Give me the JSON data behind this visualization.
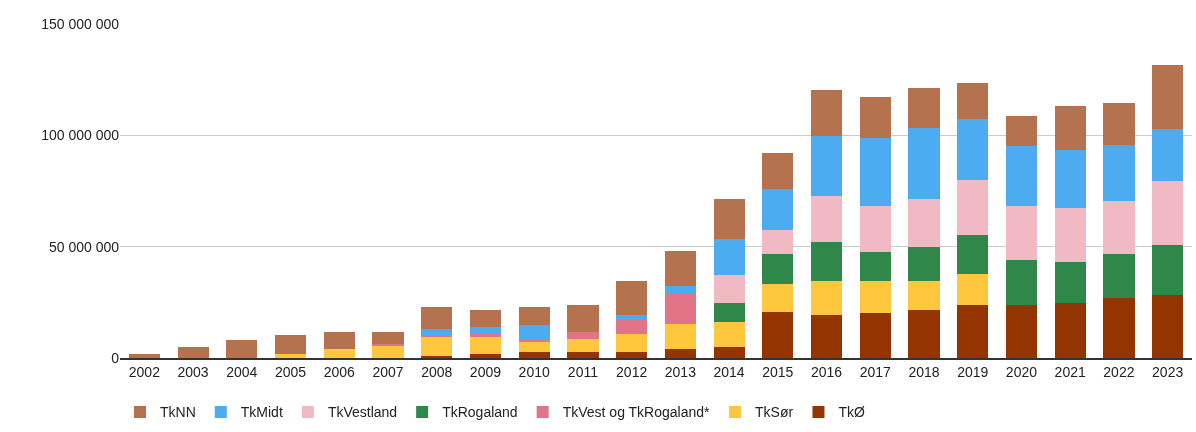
{
  "chart_data": {
    "type": "bar",
    "stacked": true,
    "categories": [
      "2002",
      "2003",
      "2004",
      "2005",
      "2006",
      "2007",
      "2008",
      "2009",
      "2010",
      "2011",
      "2012",
      "2013",
      "2014",
      "2015",
      "2016",
      "2017",
      "2018",
      "2019",
      "2020",
      "2021",
      "2022",
      "2023"
    ],
    "series": [
      {
        "name": "TkØ",
        "color": "#943501",
        "values": [
          null,
          null,
          null,
          null,
          null,
          null,
          900000,
          1900000,
          2600000,
          2600000,
          2600000,
          3900000,
          4800000,
          20800000,
          19200000,
          20100000,
          21700000,
          23900000,
          23900000,
          24700000,
          26900000,
          28400000
        ]
      },
      {
        "name": "TkSør",
        "color": "#ffc73e",
        "values": [
          null,
          null,
          null,
          1800000,
          4100000,
          5400000,
          8500000,
          7500000,
          4400000,
          6000000,
          8200000,
          11500000,
          11200000,
          12300000,
          15400000,
          14500000,
          12900000,
          13800000,
          null,
          null,
          null,
          null
        ]
      },
      {
        "name": "TkVest og TkRogaland*",
        "color": "#e17587",
        "values": [
          null,
          null,
          null,
          null,
          null,
          900000,
          900000,
          1500000,
          1600000,
          2900000,
          6900000,
          13600000,
          null,
          null,
          null,
          null,
          null,
          null,
          null,
          null,
          null,
          null
        ]
      },
      {
        "name": "TkRogaland",
        "color": "#2f8749",
        "values": [
          null,
          null,
          null,
          null,
          null,
          null,
          null,
          null,
          null,
          null,
          null,
          null,
          8500000,
          13800000,
          17600000,
          13000000,
          15400000,
          17600000,
          19900000,
          18300000,
          19900000,
          22300000
        ]
      },
      {
        "name": "TkVestland",
        "color": "#f0b9c3",
        "values": [
          null,
          null,
          null,
          null,
          null,
          null,
          null,
          null,
          null,
          null,
          null,
          null,
          12900000,
          10700000,
          20600000,
          20600000,
          21400000,
          24500000,
          24500000,
          24300000,
          23600000,
          29000000
        ]
      },
      {
        "name": "TkMidt",
        "color": "#4dabf0",
        "values": [
          null,
          null,
          null,
          null,
          null,
          null,
          2900000,
          3100000,
          6100000,
          null,
          1800000,
          3200000,
          16100000,
          18300000,
          26800000,
          30600000,
          32100000,
          27500000,
          26800000,
          26100000,
          25300000,
          23000000
        ]
      },
      {
        "name": "TkNN",
        "color": "#b4724e",
        "values": [
          1800000,
          4800000,
          7900000,
          8400000,
          7600000,
          5400000,
          9900000,
          7600000,
          8300000,
          12300000,
          15200000,
          15900000,
          17700000,
          16100000,
          20600000,
          18300000,
          17600000,
          16100000,
          13600000,
          19900000,
          19000000,
          29100000
        ]
      }
    ],
    "ylim": [
      0,
      150000000
    ],
    "yticks": [
      0,
      {
        "value": 50000000,
        "label": "50 000 000"
      },
      {
        "value": 100000000,
        "label": "100 000 000"
      },
      {
        "value": 150000000,
        "label": "150 000 000"
      }
    ],
    "grid": "y",
    "legend": "bottom"
  }
}
